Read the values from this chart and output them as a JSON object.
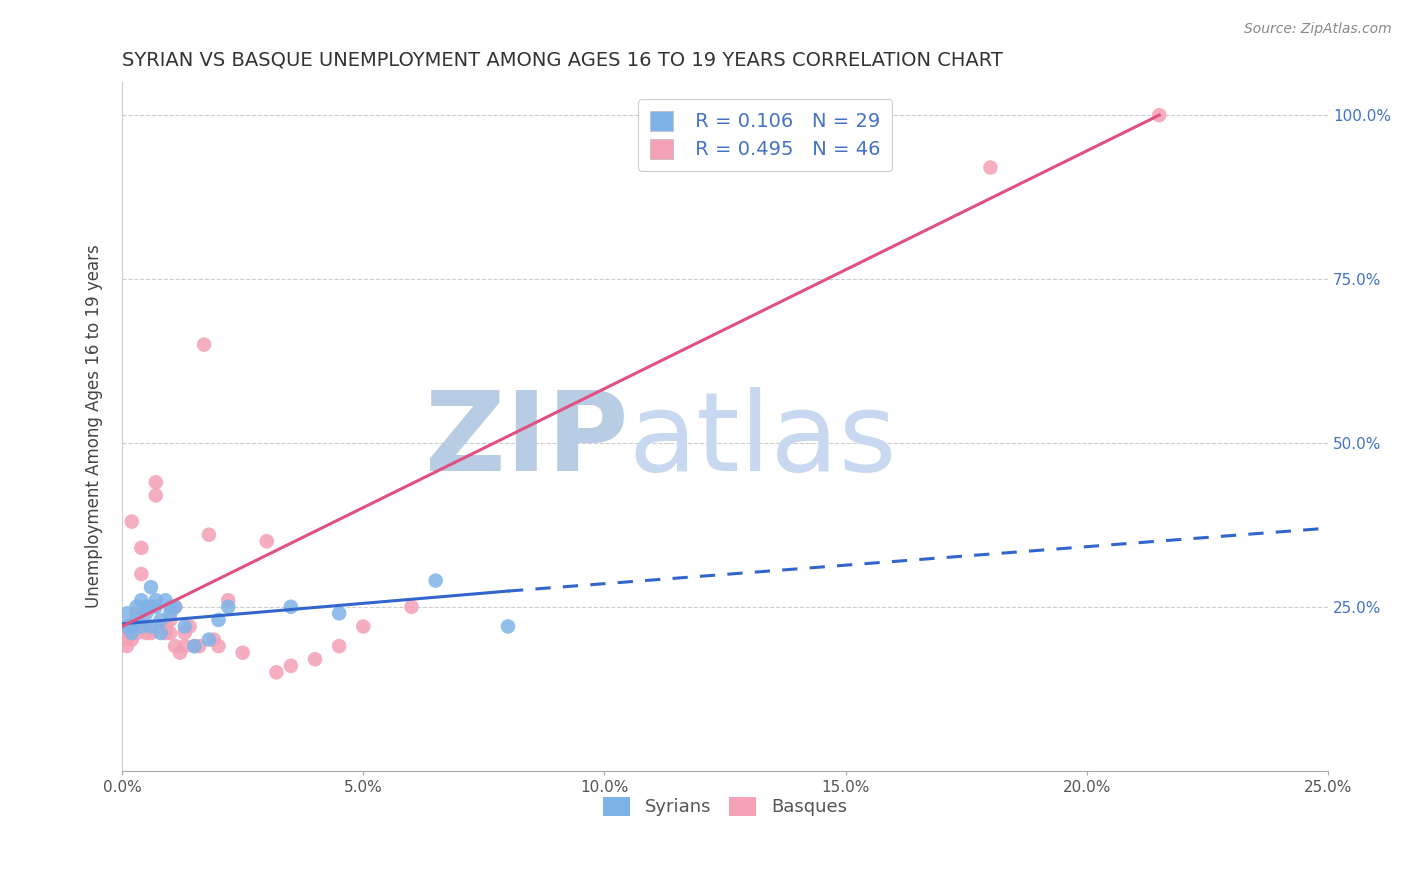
{
  "title": "SYRIAN VS BASQUE UNEMPLOYMENT AMONG AGES 16 TO 19 YEARS CORRELATION CHART",
  "source": "Source: ZipAtlas.com",
  "ylabel": "Unemployment Among Ages 16 to 19 years",
  "xlim": [
    0.0,
    0.25
  ],
  "ylim": [
    0.0,
    1.05
  ],
  "x_ticks": [
    0.0,
    0.05,
    0.1,
    0.15,
    0.2,
    0.25
  ],
  "x_tick_labels": [
    "0.0%",
    "5.0%",
    "10.0%",
    "15.0%",
    "20.0%",
    "25.0%"
  ],
  "y_ticks": [
    0.0,
    0.25,
    0.5,
    0.75,
    1.0
  ],
  "y_tick_labels": [
    "",
    "25.0%",
    "50.0%",
    "75.0%",
    "100.0%"
  ],
  "syrians_R": 0.106,
  "syrians_N": 29,
  "basques_R": 0.495,
  "basques_N": 46,
  "syrian_color": "#7eb3e8",
  "basque_color": "#f4a0b5",
  "syrian_line_color": "#3366cc",
  "basque_line_color": "#e05080",
  "watermark_zip": "ZIP",
  "watermark_atlas": "atlas",
  "watermark_color_zip": "#b8cce4",
  "watermark_color_atlas": "#c8d8f0",
  "legend_label_syrian": "Syrians",
  "legend_label_basque": "Basques",
  "syrians_x": [
    0.001,
    0.001,
    0.002,
    0.002,
    0.003,
    0.003,
    0.004,
    0.004,
    0.005,
    0.005,
    0.006,
    0.006,
    0.007,
    0.007,
    0.008,
    0.008,
    0.009,
    0.01,
    0.01,
    0.011,
    0.013,
    0.015,
    0.018,
    0.02,
    0.022,
    0.035,
    0.045,
    0.065,
    0.08
  ],
  "syrians_y": [
    0.22,
    0.24,
    0.21,
    0.22,
    0.23,
    0.25,
    0.22,
    0.26,
    0.24,
    0.25,
    0.22,
    0.28,
    0.25,
    0.26,
    0.21,
    0.23,
    0.26,
    0.24,
    0.25,
    0.25,
    0.22,
    0.19,
    0.2,
    0.23,
    0.25,
    0.25,
    0.24,
    0.29,
    0.22
  ],
  "basques_x": [
    0.001,
    0.001,
    0.002,
    0.002,
    0.002,
    0.003,
    0.003,
    0.004,
    0.004,
    0.005,
    0.005,
    0.005,
    0.006,
    0.006,
    0.007,
    0.007,
    0.008,
    0.009,
    0.009,
    0.01,
    0.01,
    0.011,
    0.011,
    0.012,
    0.013,
    0.013,
    0.014,
    0.015,
    0.016,
    0.017,
    0.018,
    0.019,
    0.02,
    0.022,
    0.025,
    0.03,
    0.032,
    0.035,
    0.04,
    0.045,
    0.05,
    0.06,
    0.18,
    0.215,
    0.001,
    0.001
  ],
  "basques_y": [
    0.21,
    0.22,
    0.2,
    0.22,
    0.38,
    0.21,
    0.24,
    0.3,
    0.34,
    0.21,
    0.22,
    0.25,
    0.21,
    0.25,
    0.42,
    0.44,
    0.22,
    0.21,
    0.22,
    0.21,
    0.23,
    0.19,
    0.25,
    0.18,
    0.19,
    0.21,
    0.22,
    0.19,
    0.19,
    0.65,
    0.36,
    0.2,
    0.19,
    0.26,
    0.18,
    0.35,
    0.15,
    0.16,
    0.17,
    0.19,
    0.22,
    0.25,
    0.92,
    1.0,
    0.2,
    0.19
  ],
  "basque_line_x0": 0.0,
  "basque_line_y0": 0.22,
  "basque_line_x1": 0.215,
  "basque_line_y1": 1.0,
  "syrian_line_x0": 0.0,
  "syrian_line_y0": 0.224,
  "syrian_line_x1": 0.08,
  "syrian_line_y1": 0.274,
  "syrian_line_dash_x1": 0.25,
  "syrian_line_dash_y1": 0.37
}
